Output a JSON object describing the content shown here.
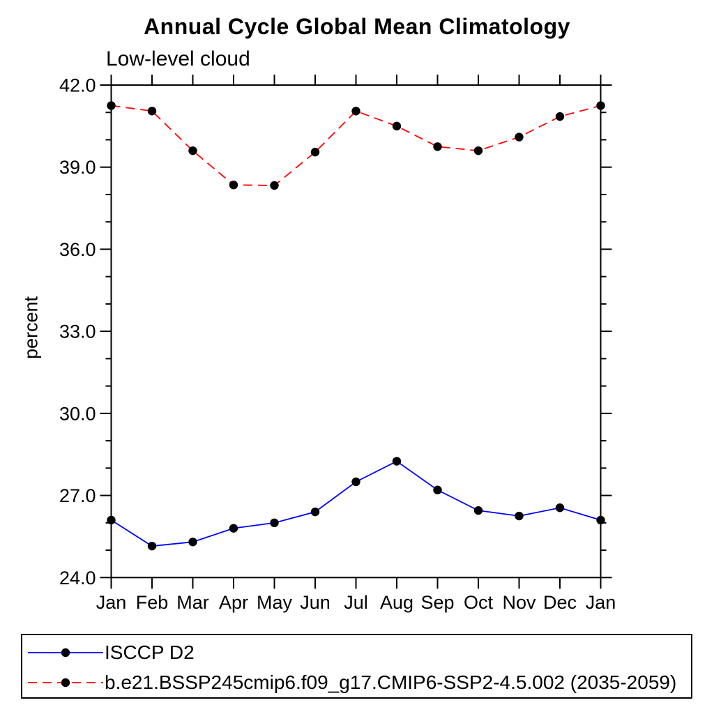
{
  "title": "Annual Cycle Global Mean Climatology",
  "subtitle": "Low-level cloud",
  "ylabel": "percent",
  "colors": {
    "obs_line": "#0000ff",
    "model_line": "#ff0000",
    "marker": "#000000",
    "axis": "#000000",
    "background": "#ffffff"
  },
  "legend": {
    "items": [
      {
        "label": "ISCCP D2",
        "color": "#0000ff",
        "style": "solid"
      },
      {
        "label": "b.e21.BSSP245cmip6.f09_g17.CMIP6-SSP2-4.5.002 (2035-2059)",
        "color": "#ff0000",
        "style": "dashed"
      }
    ]
  },
  "chart_data": {
    "type": "line",
    "title": "Annual Cycle Global Mean Climatology",
    "subtitle": "Low-level cloud",
    "xlabel": "",
    "ylabel": "percent",
    "x_categories": [
      "Jan",
      "Feb",
      "Mar",
      "Apr",
      "May",
      "Jun",
      "Jul",
      "Aug",
      "Sep",
      "Oct",
      "Nov",
      "Dec",
      "Jan"
    ],
    "ylim": [
      24.0,
      42.0
    ],
    "ytick_major": [
      24.0,
      27.0,
      30.0,
      33.0,
      36.0,
      39.0,
      42.0
    ],
    "ytick_minor_step": 1.0,
    "grid": false,
    "legend_position": "bottom",
    "series": [
      {
        "name": "ISCCP D2",
        "color": "#0000ff",
        "style": "solid",
        "marker": "filled-circle",
        "marker_color": "#000000",
        "values": [
          26.1,
          25.15,
          25.3,
          25.8,
          26.0,
          26.4,
          27.5,
          28.25,
          27.2,
          26.45,
          26.25,
          26.55,
          26.1
        ]
      },
      {
        "name": "b.e21.BSSP245cmip6.f09_g17.CMIP6-SSP2-4.5.002 (2035-2059)",
        "color": "#ff0000",
        "style": "dashed",
        "marker": "filled-circle",
        "marker_color": "#000000",
        "values": [
          41.25,
          41.05,
          39.6,
          38.35,
          38.33,
          39.55,
          41.05,
          40.5,
          39.75,
          39.6,
          40.1,
          40.85,
          41.25
        ]
      }
    ]
  }
}
